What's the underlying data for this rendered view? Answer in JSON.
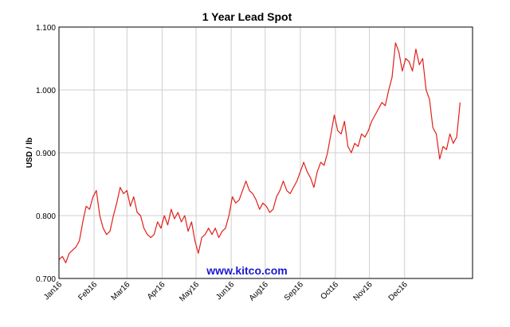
{
  "chart_data": {
    "type": "line",
    "title": "1 Year Lead Spot",
    "xlabel": "",
    "ylabel": "USD / lb",
    "watermark": "www.kitco.com",
    "ylim": [
      0.7,
      1.1
    ],
    "xlim": [
      0,
      365
    ],
    "grid": true,
    "y_ticks": [
      "0.700",
      "0.800",
      "0.900",
      "1.000",
      "1.100"
    ],
    "x_ticks": [
      {
        "label": "Jan16",
        "x": 0
      },
      {
        "label": "Feb16",
        "x": 31
      },
      {
        "label": "Mar16",
        "x": 60
      },
      {
        "label": "Apr16",
        "x": 91
      },
      {
        "label": "May16",
        "x": 121
      },
      {
        "label": "Jun16",
        "x": 152
      },
      {
        "label": "Aug16",
        "x": 182
      },
      {
        "label": "Sep16",
        "x": 213
      },
      {
        "label": "Oct16",
        "x": 244
      },
      {
        "label": "Nov16",
        "x": 274
      },
      {
        "label": "Dec16",
        "x": 305
      }
    ],
    "series": [
      {
        "color": "#e0201a",
        "points": [
          [
            0,
            0.73
          ],
          [
            3,
            0.735
          ],
          [
            6,
            0.725
          ],
          [
            9,
            0.74
          ],
          [
            12,
            0.745
          ],
          [
            15,
            0.75
          ],
          [
            18,
            0.76
          ],
          [
            21,
            0.79
          ],
          [
            24,
            0.815
          ],
          [
            27,
            0.81
          ],
          [
            30,
            0.83
          ],
          [
            33,
            0.84
          ],
          [
            36,
            0.8
          ],
          [
            39,
            0.78
          ],
          [
            42,
            0.77
          ],
          [
            45,
            0.775
          ],
          [
            48,
            0.8
          ],
          [
            51,
            0.82
          ],
          [
            54,
            0.845
          ],
          [
            57,
            0.835
          ],
          [
            60,
            0.84
          ],
          [
            63,
            0.815
          ],
          [
            66,
            0.83
          ],
          [
            69,
            0.805
          ],
          [
            72,
            0.8
          ],
          [
            75,
            0.78
          ],
          [
            78,
            0.77
          ],
          [
            81,
            0.765
          ],
          [
            84,
            0.77
          ],
          [
            87,
            0.79
          ],
          [
            90,
            0.78
          ],
          [
            93,
            0.8
          ],
          [
            96,
            0.785
          ],
          [
            99,
            0.81
          ],
          [
            102,
            0.795
          ],
          [
            105,
            0.805
          ],
          [
            108,
            0.79
          ],
          [
            111,
            0.8
          ],
          [
            114,
            0.775
          ],
          [
            117,
            0.79
          ],
          [
            120,
            0.76
          ],
          [
            123,
            0.74
          ],
          [
            126,
            0.765
          ],
          [
            129,
            0.77
          ],
          [
            132,
            0.78
          ],
          [
            135,
            0.77
          ],
          [
            138,
            0.78
          ],
          [
            141,
            0.765
          ],
          [
            144,
            0.775
          ],
          [
            147,
            0.78
          ],
          [
            150,
            0.8
          ],
          [
            153,
            0.83
          ],
          [
            156,
            0.82
          ],
          [
            159,
            0.825
          ],
          [
            162,
            0.84
          ],
          [
            165,
            0.855
          ],
          [
            168,
            0.84
          ],
          [
            171,
            0.835
          ],
          [
            174,
            0.825
          ],
          [
            177,
            0.81
          ],
          [
            180,
            0.82
          ],
          [
            183,
            0.815
          ],
          [
            186,
            0.805
          ],
          [
            189,
            0.81
          ],
          [
            192,
            0.83
          ],
          [
            195,
            0.84
          ],
          [
            198,
            0.855
          ],
          [
            201,
            0.84
          ],
          [
            204,
            0.835
          ],
          [
            207,
            0.845
          ],
          [
            210,
            0.855
          ],
          [
            213,
            0.87
          ],
          [
            216,
            0.885
          ],
          [
            219,
            0.87
          ],
          [
            222,
            0.86
          ],
          [
            225,
            0.845
          ],
          [
            228,
            0.87
          ],
          [
            231,
            0.885
          ],
          [
            234,
            0.88
          ],
          [
            237,
            0.9
          ],
          [
            240,
            0.93
          ],
          [
            243,
            0.96
          ],
          [
            246,
            0.935
          ],
          [
            249,
            0.93
          ],
          [
            252,
            0.95
          ],
          [
            255,
            0.91
          ],
          [
            258,
            0.9
          ],
          [
            261,
            0.915
          ],
          [
            264,
            0.91
          ],
          [
            267,
            0.93
          ],
          [
            270,
            0.925
          ],
          [
            273,
            0.935
          ],
          [
            276,
            0.95
          ],
          [
            279,
            0.96
          ],
          [
            282,
            0.97
          ],
          [
            285,
            0.98
          ],
          [
            288,
            0.975
          ],
          [
            291,
            1.0
          ],
          [
            294,
            1.02
          ],
          [
            297,
            1.075
          ],
          [
            300,
            1.06
          ],
          [
            303,
            1.03
          ],
          [
            306,
            1.05
          ],
          [
            309,
            1.045
          ],
          [
            312,
            1.03
          ],
          [
            315,
            1.065
          ],
          [
            318,
            1.04
          ],
          [
            321,
            1.05
          ],
          [
            324,
            1.0
          ],
          [
            327,
            0.985
          ],
          [
            330,
            0.94
          ],
          [
            333,
            0.93
          ],
          [
            336,
            0.89
          ],
          [
            339,
            0.91
          ],
          [
            342,
            0.905
          ],
          [
            345,
            0.93
          ],
          [
            348,
            0.915
          ],
          [
            351,
            0.925
          ],
          [
            354,
            0.98
          ]
        ]
      }
    ]
  }
}
